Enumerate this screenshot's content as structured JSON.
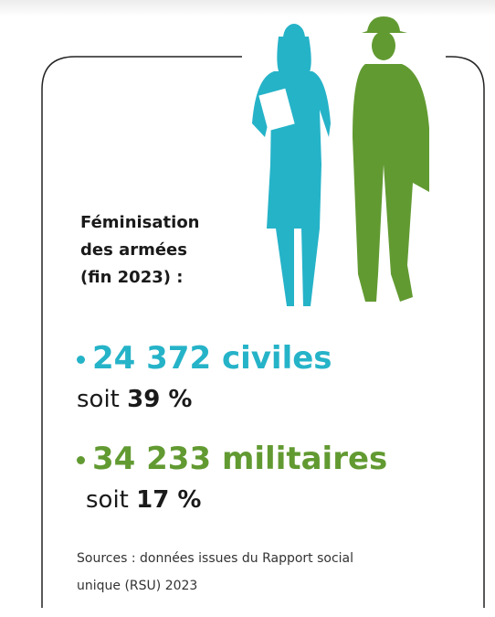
{
  "title_lines": [
    "Féminisation",
    "des armées",
    "(fin 2023) :"
  ],
  "items": [
    {
      "figure": "24 372 civiles",
      "prefix": "soit",
      "share": "39 %",
      "color": "#25b3c8"
    },
    {
      "figure": "34 233 militaires",
      "prefix": "soit",
      "share": "17 %",
      "color": "#629a32"
    }
  ],
  "sources_lines": [
    "Sources : données issues du Rapport social",
    "unique (RSU) 2023"
  ]
}
